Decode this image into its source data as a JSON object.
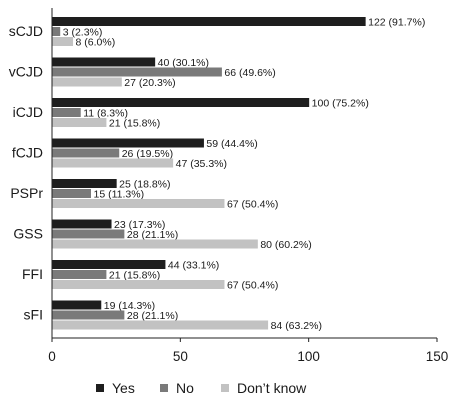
{
  "chart_data": {
    "type": "bar",
    "orientation": "horizontal",
    "title": "",
    "xlabel": "",
    "ylabel": "",
    "categories": [
      "sCJD",
      "vCJD",
      "iCJD",
      "fCJD",
      "PSPr",
      "GSS",
      "FFI",
      "sFI"
    ],
    "xlim": [
      0,
      150
    ],
    "xticks": [
      0,
      50,
      100,
      150
    ],
    "grid": false,
    "legend_position": "bottom",
    "series": [
      {
        "name": "Yes",
        "color": "#1e1e1e",
        "values": [
          122,
          40,
          100,
          59,
          25,
          23,
          44,
          19
        ],
        "labels": [
          "122 (91.7%)",
          "40 (30.1%)",
          "100 (75.2%)",
          "59 (44.4%)",
          "25 (18.8%)",
          "23 (17.3%)",
          "44 (33.1%)",
          "19 (14.3%)"
        ]
      },
      {
        "name": "No",
        "color": "#7a7a7a",
        "values": [
          3,
          66,
          11,
          26,
          15,
          28,
          21,
          28
        ],
        "labels": [
          "3 (2.3%)",
          "66 (49.6%)",
          "11 (8.3%)",
          "26 (19.5%)",
          "15 (11.3%)",
          "28 (21.1%)",
          "21 (15.8%)",
          "28 (21.1%)"
        ]
      },
      {
        "name": "Don’t know",
        "color": "#c2c2c2",
        "values": [
          8,
          27,
          21,
          47,
          67,
          80,
          67,
          84
        ],
        "labels": [
          "8 (6.0%)",
          "27 (20.3%)",
          "21 (15.8%)",
          "47 (35.3%)",
          "67 (50.4%)",
          "80 (60.2%)",
          "67 (50.4%)",
          "84 (63.2%)"
        ]
      }
    ]
  }
}
